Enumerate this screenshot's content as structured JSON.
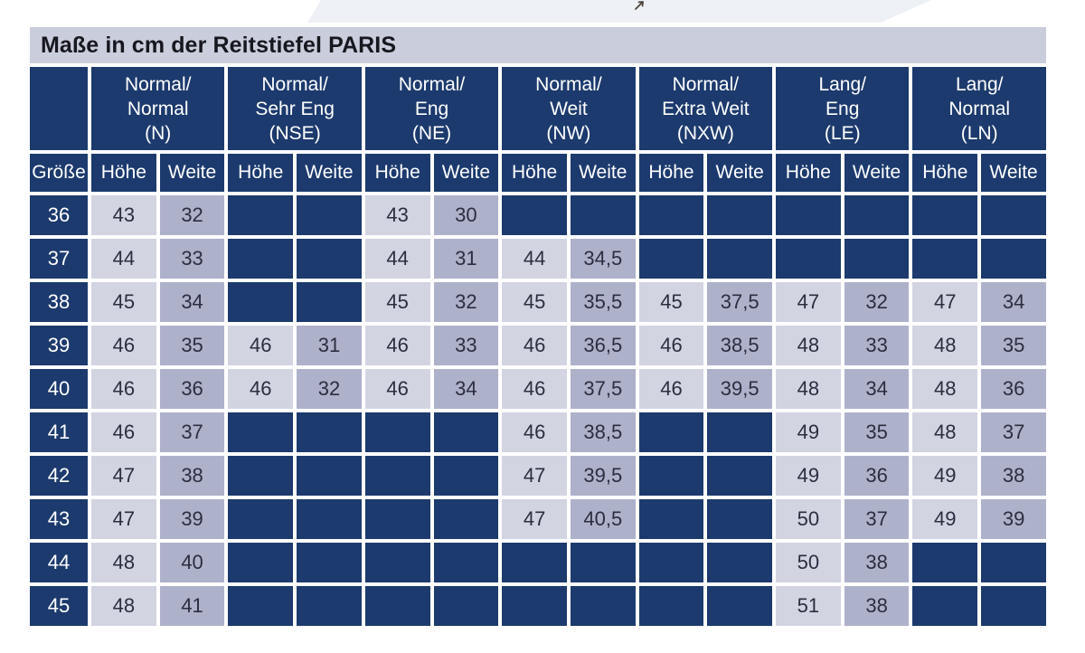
{
  "page": {
    "title": "Maße in cm der Reitstiefel PARIS"
  },
  "icons": {
    "cursor": "mouse-cursor-arrow"
  },
  "colors": {
    "navy": "#1c3a6d",
    "title_bar_bg": "#cacddb",
    "hoehe_cell_bg": "#d2d4e2",
    "weite_cell_bg": "#aeb1ca",
    "top_band_bg": "#edf0f4",
    "header_text": "#ffffff",
    "data_text": "#2b2e3f"
  },
  "table": {
    "size_header": "Größe",
    "sub_headers": [
      "Höhe",
      "Weite"
    ],
    "groups": [
      {
        "line1": "Normal/",
        "line2": "Normal",
        "code": "(N)"
      },
      {
        "line1": "Normal/",
        "line2": "Sehr Eng",
        "code": "(NSE)"
      },
      {
        "line1": "Normal/",
        "line2": "Eng",
        "code": "(NE)"
      },
      {
        "line1": "Normal/",
        "line2": "Weit",
        "code": "(NW)"
      },
      {
        "line1": "Normal/",
        "line2": "Extra Weit",
        "code": "(NXW)"
      },
      {
        "line1": "Lang/",
        "line2": "Eng",
        "code": "(LE)"
      },
      {
        "line1": "Lang/",
        "line2": "Normal",
        "code": "(LN)"
      }
    ],
    "rows": [
      {
        "size": "36",
        "values": [
          "43",
          "32",
          "",
          "",
          "43",
          "30",
          "",
          "",
          "",
          "",
          "",
          "",
          "",
          ""
        ]
      },
      {
        "size": "37",
        "values": [
          "44",
          "33",
          "",
          "",
          "44",
          "31",
          "44",
          "34,5",
          "",
          "",
          "",
          "",
          "",
          ""
        ]
      },
      {
        "size": "38",
        "values": [
          "45",
          "34",
          "",
          "",
          "45",
          "32",
          "45",
          "35,5",
          "45",
          "37,5",
          "47",
          "32",
          "47",
          "34"
        ]
      },
      {
        "size": "39",
        "values": [
          "46",
          "35",
          "46",
          "31",
          "46",
          "33",
          "46",
          "36,5",
          "46",
          "38,5",
          "48",
          "33",
          "48",
          "35"
        ]
      },
      {
        "size": "40",
        "values": [
          "46",
          "36",
          "46",
          "32",
          "46",
          "34",
          "46",
          "37,5",
          "46",
          "39,5",
          "48",
          "34",
          "48",
          "36"
        ]
      },
      {
        "size": "41",
        "values": [
          "46",
          "37",
          "",
          "",
          "",
          "",
          "46",
          "38,5",
          "",
          "",
          "49",
          "35",
          "48",
          "37"
        ]
      },
      {
        "size": "42",
        "values": [
          "47",
          "38",
          "",
          "",
          "",
          "",
          "47",
          "39,5",
          "",
          "",
          "49",
          "36",
          "49",
          "38"
        ]
      },
      {
        "size": "43",
        "values": [
          "47",
          "39",
          "",
          "",
          "",
          "",
          "47",
          "40,5",
          "",
          "",
          "50",
          "37",
          "49",
          "39"
        ]
      },
      {
        "size": "44",
        "values": [
          "48",
          "40",
          "",
          "",
          "",
          "",
          "",
          "",
          "",
          "",
          "50",
          "38",
          "",
          ""
        ]
      },
      {
        "size": "45",
        "values": [
          "48",
          "41",
          "",
          "",
          "",
          "",
          "",
          "",
          "",
          "",
          "51",
          "38",
          "",
          ""
        ]
      }
    ]
  }
}
